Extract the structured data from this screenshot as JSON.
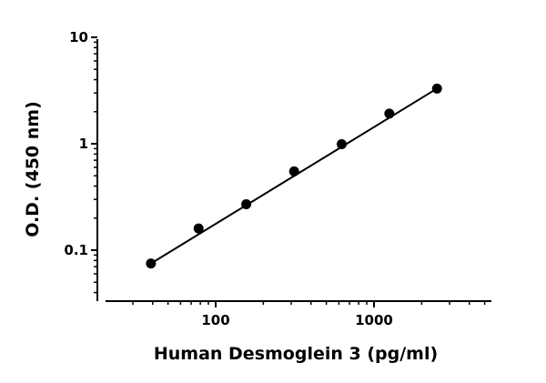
{
  "chart_data": {
    "type": "scatter",
    "title": "",
    "xlabel": "Human Desmoglein 3 (pg/ml)",
    "ylabel": "O.D. (450 nm)",
    "x_scale": "log",
    "y_scale": "log",
    "xlim": [
      20,
      5000
    ],
    "ylim": [
      0.03,
      10
    ],
    "x_ticks": [
      {
        "value": 100,
        "label": "100"
      },
      {
        "value": 1000,
        "label": "1000"
      }
    ],
    "y_ticks": [
      {
        "value": 0.1,
        "label": "0.1"
      },
      {
        "value": 1,
        "label": "1"
      },
      {
        "value": 10,
        "label": "10"
      }
    ],
    "grid": false,
    "legend": "none",
    "series": [
      {
        "x": [
          39,
          78,
          156,
          313,
          625,
          1250,
          2500
        ],
        "y": [
          0.075,
          0.16,
          0.27,
          0.55,
          0.99,
          1.92,
          3.3
        ]
      }
    ],
    "fit_line": {
      "type": "linear-log-log",
      "x": [
        39,
        2500
      ],
      "y": [
        0.075,
        3.3
      ]
    },
    "colors": {
      "marker": "#000000",
      "line": "#000000",
      "axis": "#000000"
    }
  }
}
